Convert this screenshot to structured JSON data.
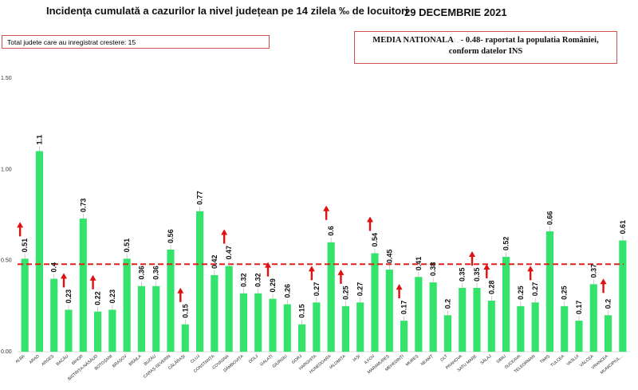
{
  "chart_data": {
    "type": "bar",
    "title": "Incidența cumulată a cazurilor la nivel județean pe 14 zilela ‰ de locuitori",
    "date": "29 DECEMBRIE 2021",
    "growth_note": "Total judete care au inregistrat crestere: 15",
    "national_average": {
      "line1_lead": "MEDIA NATIONALA",
      "line1_value": " - 0.48-  raportat la populatia României,",
      "line2": "conform datelor INS",
      "value": 0.48
    },
    "ylim": [
      0,
      1.5
    ],
    "yticks": [
      "0.00",
      "0.50",
      "1.00",
      "1.50"
    ],
    "yticks_values": [
      0,
      0.5,
      1.0,
      1.5
    ],
    "bar_color": "#33e36b",
    "average_line_color": "#e0201c",
    "increase_arrow_color": "#e01010",
    "categories": [
      "ALBA",
      "ARAD",
      "ARGEȘ",
      "BACĂU",
      "BIHOR",
      "BISTRIȚA-NĂSĂUD",
      "BOTOȘANI",
      "BRAȘOV",
      "BRĂILA",
      "BUZĂU",
      "CARAȘ-SEVERIN",
      "CĂLĂRAȘI",
      "CLUJ",
      "CONSTANȚA",
      "COVASNA",
      "DÂMBOVIȚA",
      "DOLJ",
      "GALAȚI",
      "GIURGIU",
      "GORJ",
      "HARGHITA",
      "HUNEDOARA",
      "IALOMIȚA",
      "IAȘI",
      "ILFOV",
      "MARAMUREȘ",
      "MEHEDINȚI",
      "MUREȘ",
      "NEAMȚ",
      "OLT",
      "PRAHOVA",
      "SATU MARE",
      "SĂLAJ",
      "SIBIU",
      "SUCEAVA",
      "TELEORMAN",
      "TIMIȘ",
      "TULCEA",
      "VASLUI",
      "VÂLCEA",
      "VRANCEA",
      "MUNICIPIUL..."
    ],
    "values": [
      0.51,
      1.1,
      0.4,
      0.23,
      0.73,
      0.22,
      0.23,
      0.51,
      0.36,
      0.36,
      0.56,
      0.15,
      0.77,
      0.42,
      0.47,
      0.32,
      0.32,
      0.29,
      0.26,
      0.15,
      0.27,
      0.6,
      0.25,
      0.27,
      0.54,
      0.45,
      0.17,
      0.41,
      0.38,
      0.2,
      0.35,
      0.35,
      0.28,
      0.52,
      0.25,
      0.27,
      0.66,
      0.25,
      0.17,
      0.37,
      0.2,
      0.61
    ],
    "value_labels": [
      "0.51",
      "1.1",
      "0.4",
      "0.23",
      "0.73",
      "0.22",
      "0.23",
      "0.51",
      "0.36",
      "0.36",
      "0.56",
      "0.15",
      "0.77",
      "0.42",
      "0.47",
      "0.32",
      "0.32",
      "0.29",
      "0.26",
      "0.15",
      "0.27",
      "0.6",
      "0.25",
      "0.27",
      "0.54",
      "0.45",
      "0.17",
      "0.41",
      "0.38",
      "0.2",
      "0.35",
      "0.35",
      "0.28",
      "0.52",
      "0.25",
      "0.27",
      "0.66",
      "0.25",
      "0.17",
      "0.37",
      "0.2",
      "0.61"
    ],
    "increased": [
      true,
      false,
      false,
      true,
      false,
      true,
      false,
      false,
      false,
      false,
      false,
      true,
      false,
      false,
      true,
      false,
      false,
      true,
      false,
      false,
      true,
      true,
      true,
      false,
      true,
      false,
      true,
      false,
      false,
      false,
      false,
      true,
      true,
      false,
      false,
      true,
      false,
      false,
      false,
      false,
      true,
      false
    ]
  }
}
